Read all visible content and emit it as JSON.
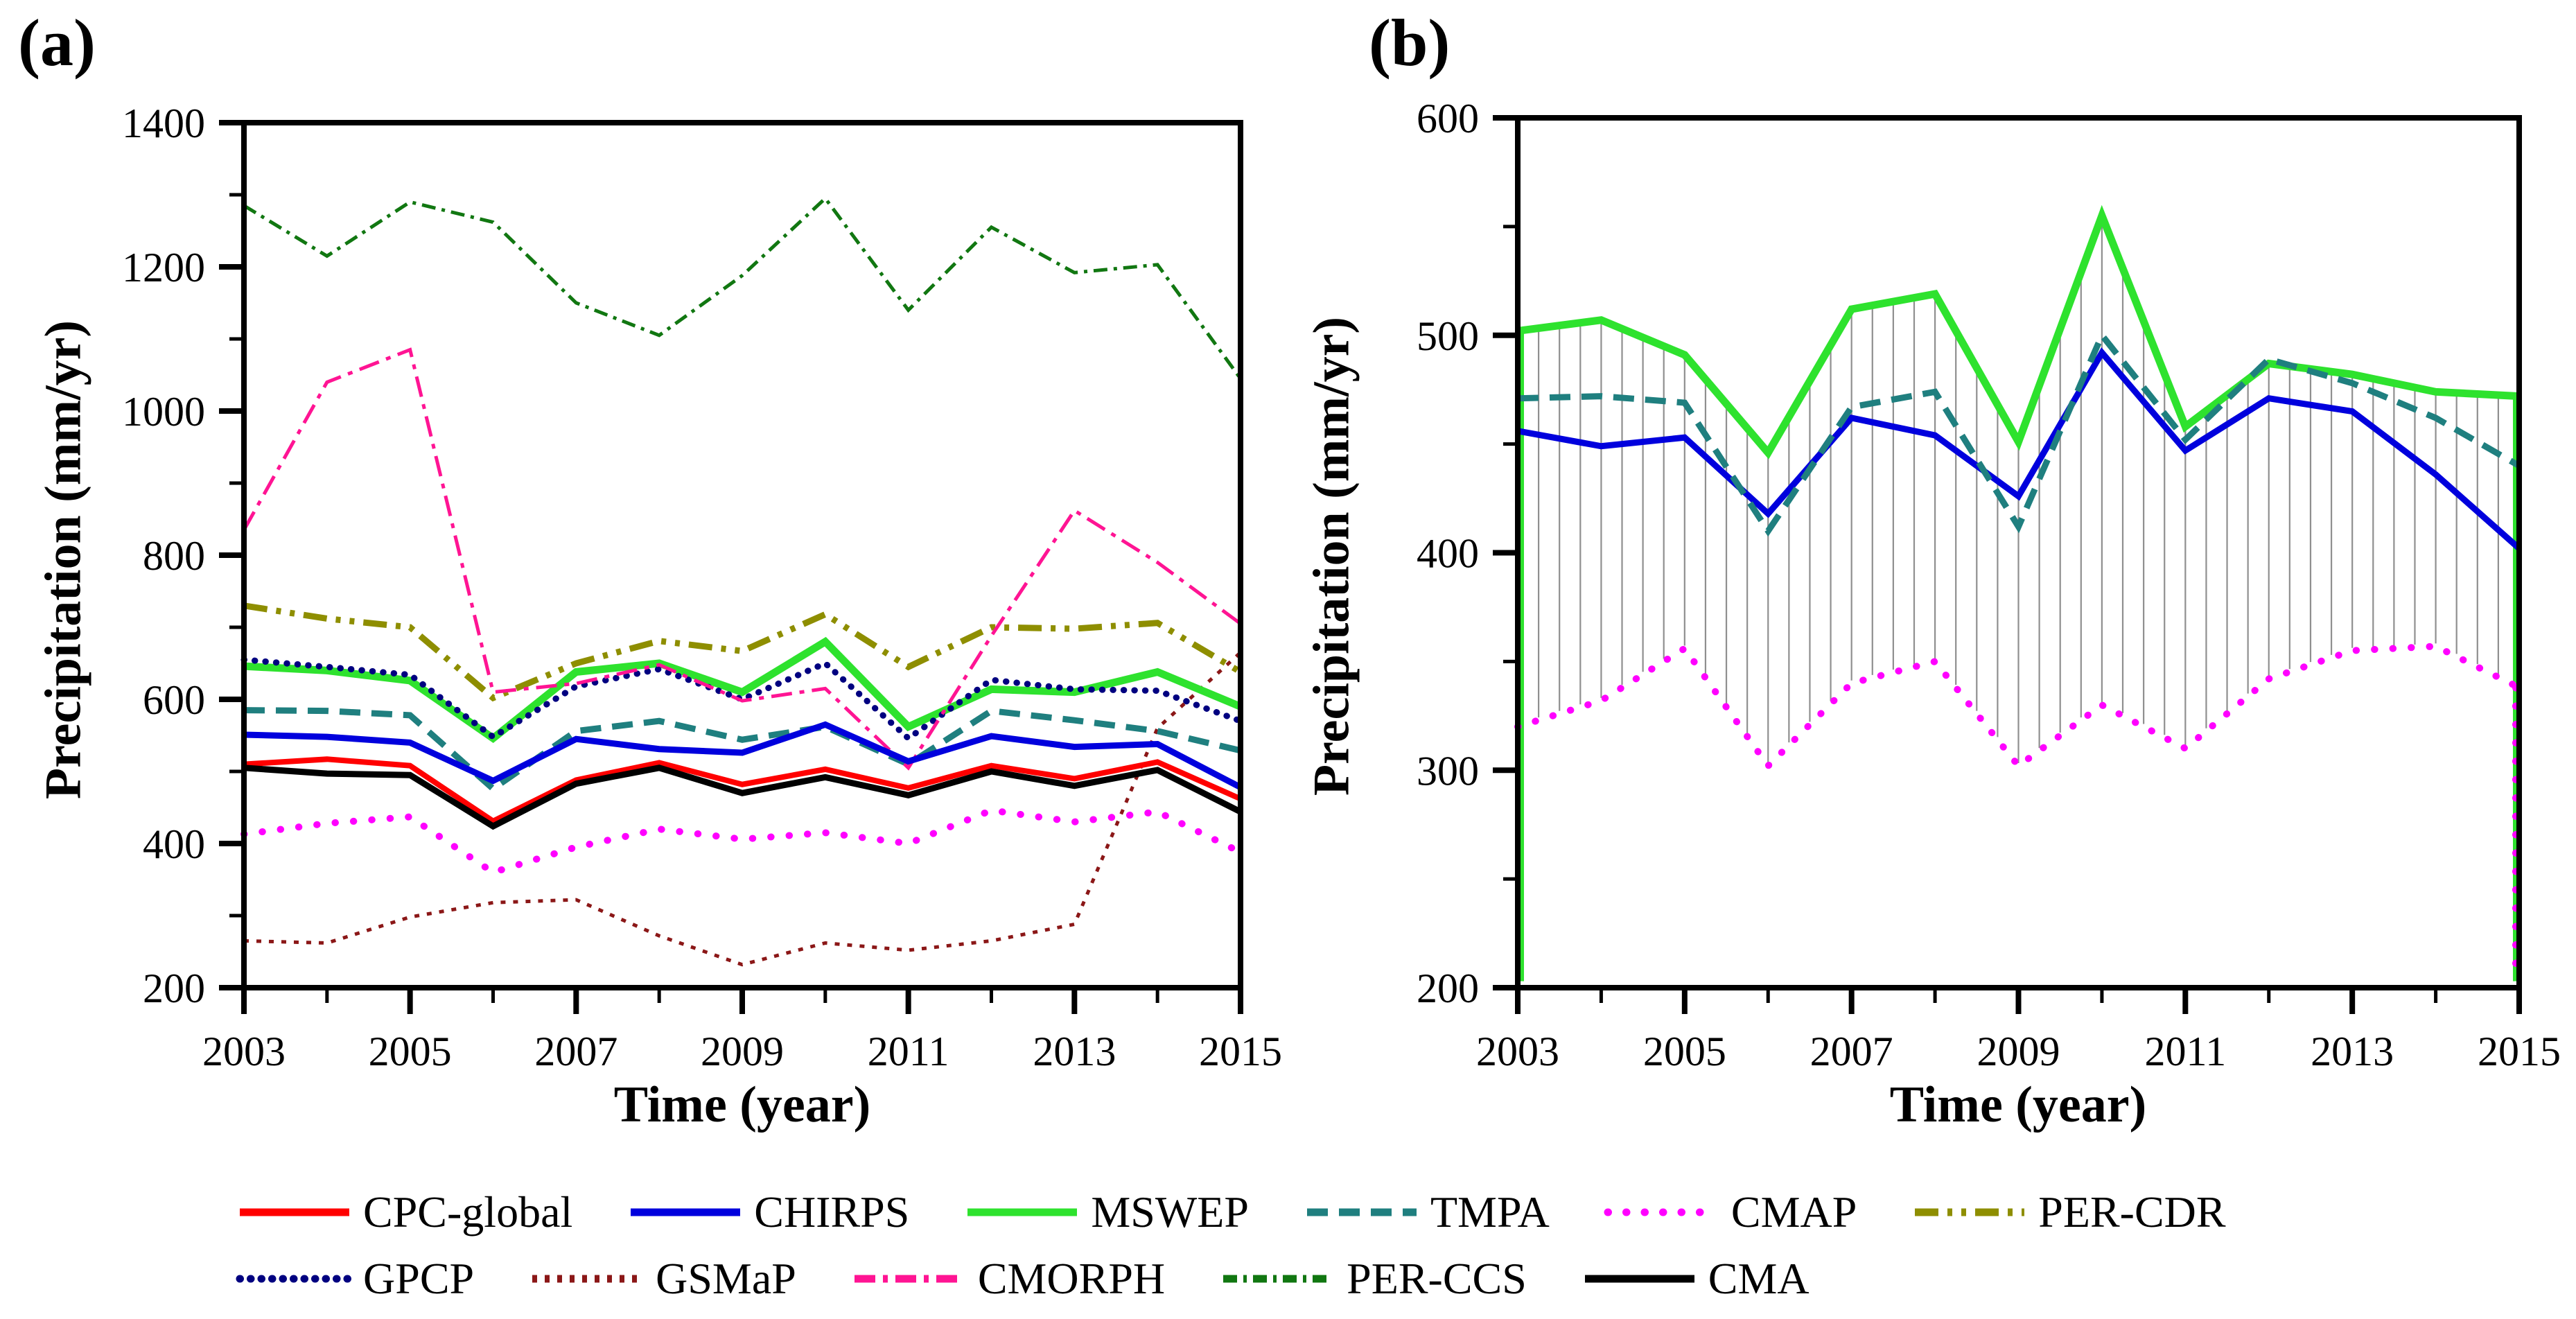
{
  "figure": {
    "background": "#ffffff",
    "x_axis_title": "Time (year)",
    "y_axis_title": "Precipitation (mm/yr)"
  },
  "series_styles": {
    "CPC-global": {
      "color": "#ff0000",
      "style": "solid",
      "width": 8
    },
    "CHIRPS": {
      "color": "#0000dd",
      "style": "solid",
      "width": 9
    },
    "MSWEP": {
      "color": "#2ee22e",
      "style": "solid",
      "width": 11
    },
    "TMPA": {
      "color": "#1f7f7f",
      "style": "dash",
      "width": 9
    },
    "CMAP": {
      "color": "#ff00ff",
      "style": "dot-sparse",
      "width": 10
    },
    "PER-CDR": {
      "color": "#8e8e00",
      "style": "dash-dot-dot",
      "width": 9
    },
    "GPCP": {
      "color": "#000080",
      "style": "dot-dense",
      "width": 9
    },
    "GSMaP": {
      "color": "#8b1717",
      "style": "dot-fine",
      "width": 5
    },
    "CMORPH": {
      "color": "#ff1493",
      "style": "dash-dot",
      "width": 5
    },
    "PER-CCS": {
      "color": "#117711",
      "style": "dash-dot-fine",
      "width": 5
    },
    "CMA": {
      "color": "#000000",
      "style": "solid",
      "width": 9
    }
  },
  "chart_data": [
    {
      "type": "line",
      "panel_label": "(a)",
      "xlabel": "Time (year)",
      "ylabel": "Precipitation (mm/yr)",
      "x": [
        2003,
        2004,
        2005,
        2006,
        2007,
        2008,
        2009,
        2010,
        2011,
        2012,
        2013,
        2014,
        2015
      ],
      "xticks_labeled": [
        2003,
        2005,
        2007,
        2009,
        2011,
        2013,
        2015
      ],
      "ylim": [
        200,
        1400
      ],
      "yticks": [
        200,
        400,
        600,
        800,
        1000,
        1200,
        1400
      ],
      "grid": false,
      "series": [
        {
          "name": "CPC-global",
          "values": [
            510,
            517,
            508,
            431,
            488,
            512,
            482,
            503,
            477,
            508,
            490,
            513,
            462
          ]
        },
        {
          "name": "CHIRPS",
          "values": [
            551,
            548,
            540,
            487,
            545,
            531,
            526,
            565,
            514,
            549,
            534,
            538,
            478
          ]
        },
        {
          "name": "MSWEP",
          "values": [
            646,
            640,
            626,
            546,
            638,
            650,
            610,
            680,
            562,
            614,
            610,
            638,
            590
          ]
        },
        {
          "name": "TMPA",
          "values": [
            585,
            584,
            578,
            476,
            556,
            570,
            544,
            562,
            510,
            584,
            571,
            556,
            529
          ]
        },
        {
          "name": "CMAP",
          "values": [
            413,
            428,
            437,
            360,
            395,
            420,
            406,
            415,
            400,
            446,
            430,
            444,
            388
          ]
        },
        {
          "name": "PER-CDR",
          "values": [
            730,
            712,
            700,
            602,
            650,
            681,
            667,
            718,
            645,
            700,
            698,
            706,
            638
          ]
        },
        {
          "name": "GPCP",
          "values": [
            655,
            645,
            634,
            548,
            618,
            642,
            600,
            650,
            546,
            627,
            614,
            612,
            570
          ]
        },
        {
          "name": "GSMaP",
          "values": [
            265,
            262,
            298,
            318,
            322,
            272,
            232,
            262,
            252,
            265,
            288,
            560,
            665
          ]
        },
        {
          "name": "CMORPH",
          "values": [
            835,
            1040,
            1085,
            610,
            622,
            648,
            598,
            615,
            505,
            688,
            862,
            790,
            705
          ]
        },
        {
          "name": "PER-CCS",
          "values": [
            1285,
            1215,
            1290,
            1262,
            1150,
            1105,
            1188,
            1295,
            1140,
            1255,
            1192,
            1203,
            1045
          ]
        },
        {
          "name": "CMA",
          "values": [
            505,
            497,
            495,
            424,
            483,
            505,
            470,
            492,
            467,
            500,
            480,
            502,
            444
          ]
        }
      ]
    },
    {
      "type": "line",
      "panel_label": "(b)",
      "xlabel": "Time (year)",
      "ylabel": "Precipitation (mm/yr)",
      "x": [
        2003,
        2004,
        2005,
        2006,
        2007,
        2008,
        2009,
        2010,
        2011,
        2012,
        2013,
        2014,
        2015
      ],
      "xticks_labeled": [
        2003,
        2005,
        2007,
        2009,
        2011,
        2013,
        2015
      ],
      "ylim": [
        200,
        600
      ],
      "yticks": [
        200,
        300,
        400,
        500,
        600
      ],
      "grid": false,
      "series": [
        {
          "name": "MSWEP",
          "values": [
            502,
            507,
            491,
            446,
            512,
            519,
            451,
            555,
            458,
            487,
            482,
            474,
            472
          ]
        },
        {
          "name": "TMPA",
          "values": [
            471,
            472,
            469,
            410,
            467,
            474,
            412,
            500,
            452,
            489,
            478,
            462,
            440
          ]
        },
        {
          "name": "CHIRPS",
          "values": [
            456,
            449,
            453,
            418,
            462,
            454,
            426,
            492,
            447,
            471,
            465,
            436,
            402
          ]
        },
        {
          "name": "CMAP",
          "values": [
            320,
            332,
            356,
            302,
            340,
            350,
            302,
            330,
            310,
            342,
            355,
            357,
            338
          ]
        }
      ],
      "hatch": {
        "top_series": "MSWEP",
        "bottom_series": "CMAP",
        "step_years": 0.25,
        "color": "#8f8f8f"
      },
      "edge_drops": [
        {
          "at": "first",
          "series": "MSWEP",
          "to_value": 203,
          "color": "#2ee22e",
          "style": "solid",
          "width": 8
        },
        {
          "at": "last",
          "series": "MSWEP",
          "to_value": 203,
          "color": "#2ee22e",
          "style": "solid",
          "width": 8
        },
        {
          "at": "last",
          "series": "CMAP",
          "to_value": 205,
          "color": "#ff00ff",
          "style": "dot-sparse",
          "width": 10
        }
      ]
    }
  ],
  "legend": {
    "rows": [
      [
        "CPC-global",
        "CHIRPS",
        "MSWEP",
        "TMPA",
        "CMAP",
        "PER-CDR"
      ],
      [
        "GPCP",
        "GSMaP",
        "CMORPH",
        "PER-CCS",
        "CMA"
      ]
    ]
  }
}
